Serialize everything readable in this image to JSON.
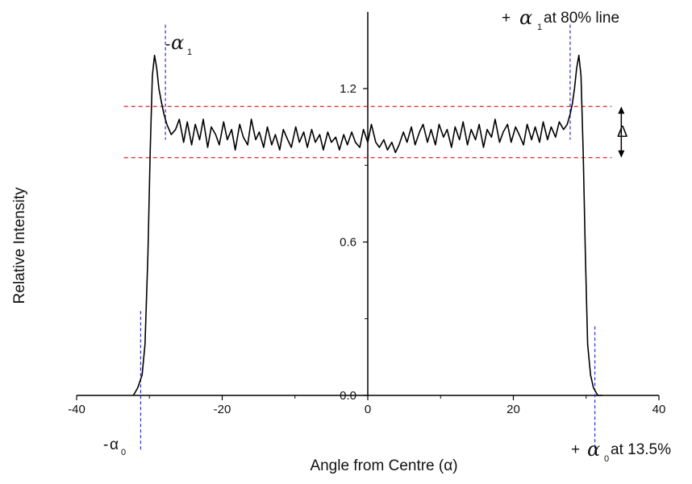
{
  "chart_data": {
    "type": "line",
    "title": "",
    "xlabel": "Angle from Centre (α)",
    "ylabel": "Relative Intensity",
    "xlim": [
      -40,
      40
    ],
    "ylim": [
      0,
      1.5
    ],
    "x_ticks": [
      -40,
      -20,
      0,
      20,
      40
    ],
    "x_tick_labels": [
      "-40",
      "-20",
      "0",
      "20",
      "40"
    ],
    "y_ticks": [
      0.0,
      0.6,
      1.2
    ],
    "y_tick_labels": [
      "0.0",
      "0.6",
      "1.2"
    ],
    "grid": false,
    "series": [
      {
        "x": [
          -32.2,
          -31.6,
          -31.0,
          -30.6,
          -30.2,
          -29.9,
          -29.6,
          -29.3,
          -29.0,
          -28.7,
          -28.3,
          -28.0,
          -27.6,
          -27.0,
          -26.4,
          -25.9,
          -25.3,
          -24.8,
          -24.2,
          -23.7,
          -23.1,
          -22.6,
          -22.0,
          -21.5,
          -20.9,
          -20.4,
          -19.8,
          -19.3,
          -18.7,
          -18.2,
          -17.6,
          -17.1,
          -16.5,
          -16.0,
          -15.4,
          -14.9,
          -14.3,
          -13.8,
          -13.2,
          -12.7,
          -12.1,
          -11.6,
          -11.0,
          -10.5,
          -9.9,
          -9.4,
          -8.8,
          -8.3,
          -7.7,
          -7.2,
          -6.6,
          -6.1,
          -5.5,
          -5.0,
          -4.4,
          -3.9,
          -3.3,
          -2.8,
          -2.2,
          -1.7,
          -1.1,
          -0.6,
          0.0,
          0.5,
          1.1,
          1.6,
          2.2,
          2.7,
          3.3,
          3.8,
          4.3,
          4.9,
          5.4,
          6.0,
          6.5,
          7.1,
          7.6,
          8.2,
          8.7,
          9.3,
          9.8,
          10.4,
          10.9,
          11.5,
          12.0,
          12.6,
          13.1,
          13.7,
          14.2,
          14.8,
          15.3,
          15.9,
          16.4,
          17.0,
          17.5,
          18.1,
          18.6,
          19.2,
          19.7,
          20.3,
          20.8,
          21.4,
          21.9,
          22.5,
          23.0,
          23.6,
          24.1,
          24.7,
          25.2,
          25.8,
          26.3,
          26.9,
          27.4,
          27.8,
          28.1,
          28.4,
          28.7,
          29.0,
          29.3,
          29.6,
          29.9,
          30.2,
          30.6,
          31.0,
          31.6,
          32.2
        ],
        "values": [
          0.0,
          0.03,
          0.08,
          0.2,
          0.55,
          0.95,
          1.25,
          1.33,
          1.28,
          1.2,
          1.14,
          1.1,
          1.06,
          1.02,
          1.04,
          1.08,
          0.99,
          1.07,
          0.98,
          1.06,
          1.0,
          1.08,
          0.97,
          1.05,
          1.02,
          0.98,
          1.07,
          1.0,
          1.04,
          0.96,
          1.06,
          1.01,
          0.98,
          1.08,
          1.0,
          1.03,
          0.97,
          1.05,
          0.98,
          1.02,
          0.96,
          1.04,
          1.0,
          0.97,
          1.05,
          0.99,
          1.03,
          0.97,
          1.04,
          0.99,
          1.02,
          0.96,
          1.03,
          0.99,
          1.01,
          0.96,
          1.02,
          0.98,
          1.03,
          0.99,
          0.97,
          1.04,
          0.99,
          1.06,
          0.99,
          0.97,
          1.0,
          0.96,
          0.99,
          0.95,
          0.98,
          1.03,
          0.99,
          1.05,
          0.98,
          1.03,
          1.06,
          0.99,
          1.04,
          0.98,
          1.06,
          1.01,
          1.04,
          0.97,
          1.05,
          1.0,
          1.07,
          0.98,
          1.04,
          1.0,
          1.06,
          0.97,
          1.04,
          1.01,
          1.08,
          0.99,
          1.03,
          1.06,
          0.99,
          1.05,
          1.02,
          0.98,
          1.06,
          1.0,
          1.05,
          0.99,
          1.07,
          1.0,
          1.05,
          1.01,
          1.07,
          1.04,
          1.06,
          1.1,
          1.14,
          1.2,
          1.28,
          1.33,
          1.25,
          0.95,
          0.55,
          0.2,
          0.08,
          0.03,
          0.0,
          0.0
        ]
      }
    ],
    "reference_lines": {
      "horizontal_red_dashed": [
        1.13,
        0.93
      ],
      "vertical_blue_dashed": [
        -31.2,
        -27.8,
        27.8,
        31.2
      ]
    },
    "annotations": {
      "minus_alpha1": {
        "prefix": "-",
        "symbol": "α",
        "subscript": "1",
        "suffix": ""
      },
      "plus_alpha1": {
        "prefix": "+",
        "symbol": "α",
        "subscript": "1",
        "suffix": "at 80% line"
      },
      "minus_alpha0": {
        "prefix": "-",
        "symbol": "α",
        "subscript": "0",
        "suffix": ""
      },
      "plus_alpha0": {
        "prefix": "+",
        "symbol": "α",
        "subscript": "0",
        "suffix": "at 13.5%"
      },
      "delta": "Δ"
    }
  },
  "colors": {
    "curve": "#000000",
    "axes": "#000000",
    "horizontal_reference": "#e8202a",
    "vertical_reference": "#2b2bd6"
  }
}
